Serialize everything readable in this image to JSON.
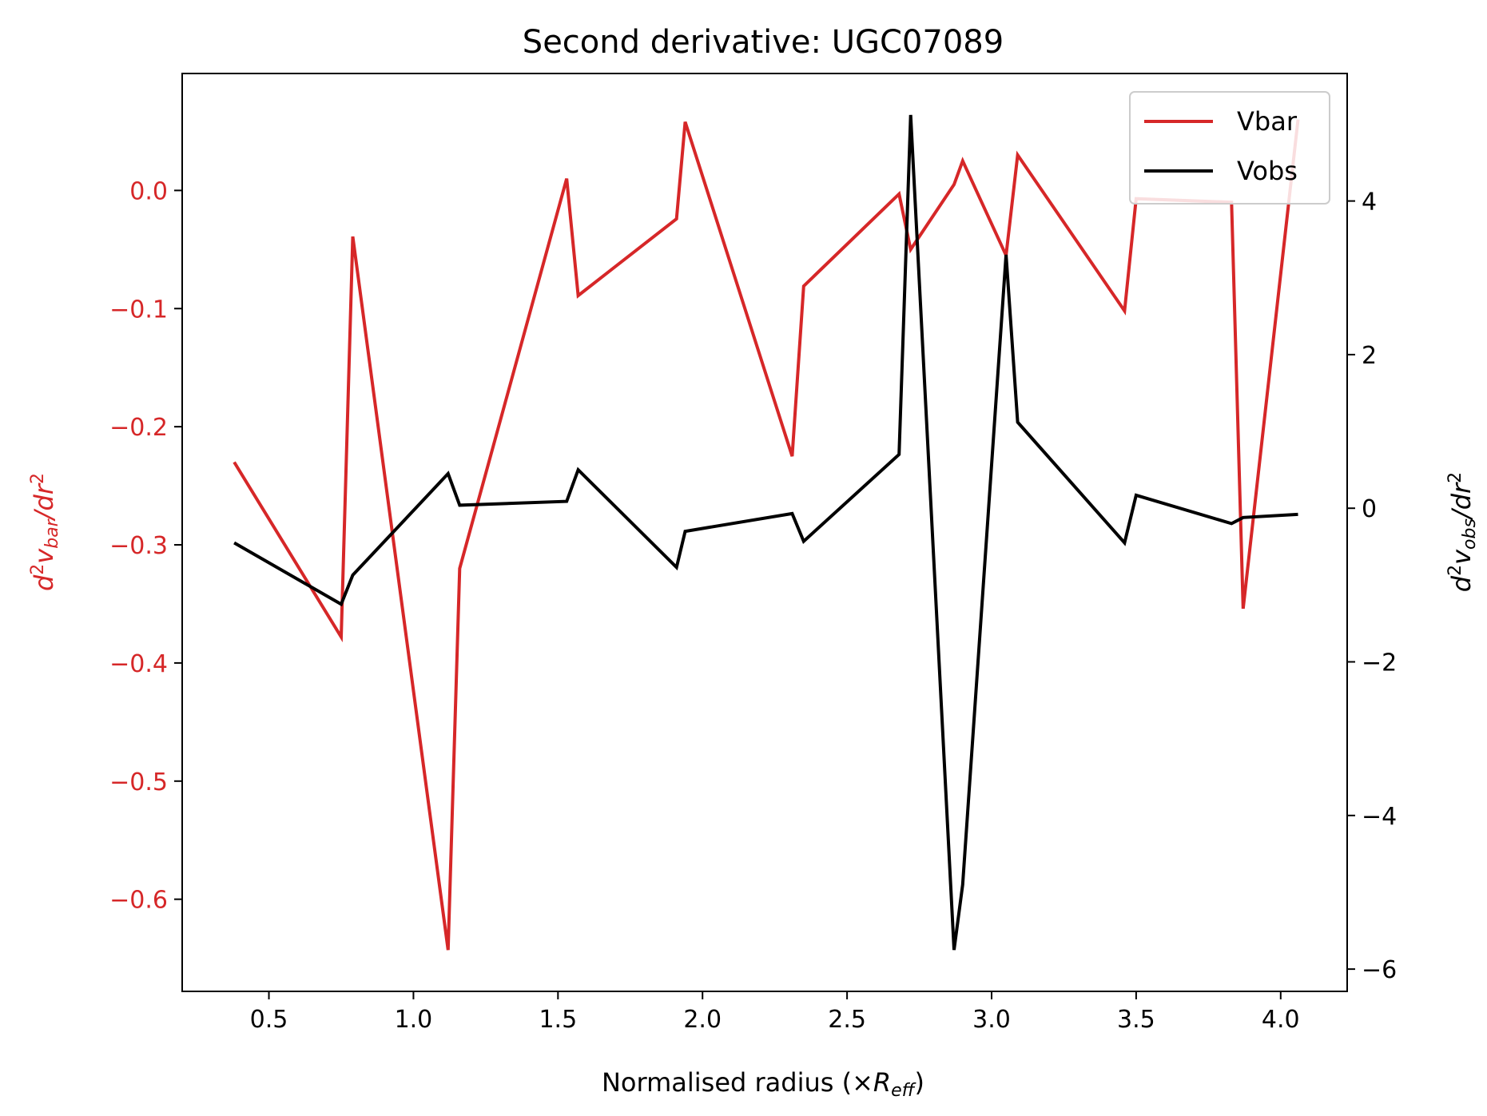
{
  "chart_data": {
    "type": "line",
    "title": "Second derivative: UGC07089",
    "xlabel": "Normalised radius (×R_eff)",
    "ylabel_left": "d²v_bar/dr²",
    "ylabel_right": "d²v_obs/dr²",
    "xlim": [
      0.2,
      4.23
    ],
    "ylim_left": [
      -0.678,
      0.099
    ],
    "ylim_right": [
      -6.29,
      5.66
    ],
    "x_ticks": [
      0.5,
      1.0,
      1.5,
      2.0,
      2.5,
      3.0,
      3.5,
      4.0
    ],
    "x_tick_labels": [
      "0.5",
      "1.0",
      "1.5",
      "2.0",
      "2.5",
      "3.0",
      "3.5",
      "4.0"
    ],
    "y_left_ticks": [
      0.0,
      -0.1,
      -0.2,
      -0.3,
      -0.4,
      -0.5,
      -0.6
    ],
    "y_left_tick_labels": [
      "0.0",
      "−0.1",
      "−0.2",
      "−0.3",
      "−0.4",
      "−0.5",
      "−0.6"
    ],
    "y_right_ticks": [
      4,
      2,
      0,
      -2,
      -4,
      -6
    ],
    "y_right_tick_labels": [
      "4",
      "2",
      "0",
      "−2",
      "−4",
      "−6"
    ],
    "legend_position": "top-right",
    "series": [
      {
        "name": "Vbar",
        "axis": "left",
        "color": "#d62728",
        "x": [
          0.38,
          0.75,
          0.79,
          1.12,
          1.16,
          1.53,
          1.57,
          1.91,
          1.94,
          2.31,
          2.35,
          2.68,
          2.72,
          2.87,
          2.9,
          3.05,
          3.09,
          3.46,
          3.5,
          3.83,
          3.87,
          4.06
        ],
        "y": [
          -0.23,
          -0.378,
          -0.039,
          -0.643,
          -0.32,
          0.01,
          -0.089,
          -0.024,
          0.058,
          -0.225,
          -0.081,
          -0.003,
          -0.05,
          0.005,
          0.025,
          -0.055,
          0.03,
          -0.102,
          -0.007,
          -0.01,
          -0.354,
          0.06
        ]
      },
      {
        "name": "Vobs",
        "axis": "right",
        "color": "#000000",
        "x": [
          0.38,
          0.75,
          0.79,
          1.12,
          1.16,
          1.53,
          1.57,
          1.91,
          1.94,
          2.31,
          2.35,
          2.68,
          2.72,
          2.87,
          2.9,
          3.05,
          3.09,
          3.46,
          3.5,
          3.83,
          3.87,
          4.06
        ],
        "y": [
          -0.45,
          -1.25,
          -0.87,
          0.45,
          0.04,
          0.09,
          0.5,
          -0.77,
          -0.3,
          -0.07,
          -0.43,
          0.7,
          5.12,
          -5.75,
          -4.9,
          3.3,
          1.12,
          -0.45,
          0.17,
          -0.2,
          -0.12,
          -0.08
        ]
      }
    ]
  }
}
